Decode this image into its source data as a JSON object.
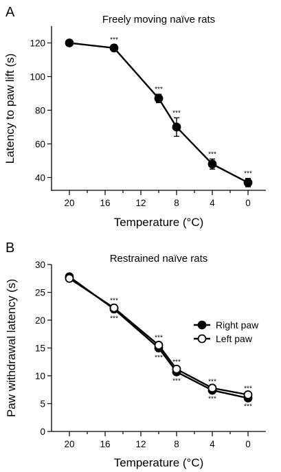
{
  "chart_data": [
    {
      "type": "line",
      "panel_label": "A",
      "title": "Freely moving naïve rats",
      "xlabel": "Temperature (°C)",
      "ylabel": "Latency to paw lift (s)",
      "x_reversed": true,
      "xlim": [
        22,
        -2
      ],
      "ylim": [
        32,
        130
      ],
      "x_ticks": [
        20,
        16,
        12,
        8,
        4,
        0
      ],
      "y_ticks": [
        40,
        60,
        80,
        100,
        120
      ],
      "x_tick_labels": [
        "20",
        "16",
        "12",
        "8",
        "4",
        "0"
      ],
      "y_tick_labels": [
        "40",
        "60",
        "80",
        "100",
        "120"
      ],
      "grid": false,
      "series": [
        {
          "marker": "filled-circle",
          "color": "#000000",
          "x": [
            20,
            15,
            10,
            8,
            4,
            0
          ],
          "y": [
            120,
            117,
            87,
            70,
            48,
            37
          ],
          "error": [
            0,
            2,
            2.5,
            5.5,
            3,
            2.5
          ],
          "annotations": [
            "",
            "***",
            "***",
            "***",
            "***",
            "***"
          ]
        }
      ]
    },
    {
      "type": "line",
      "panel_label": "B",
      "title": "Restrained naïve rats",
      "xlabel": "Temperature (°C)",
      "ylabel": "Paw withdrawal latency (s)",
      "x_reversed": true,
      "xlim": [
        22,
        -2
      ],
      "ylim": [
        0,
        30
      ],
      "x_ticks": [
        20,
        16,
        12,
        8,
        4,
        0
      ],
      "y_ticks": [
        0,
        5,
        10,
        15,
        20,
        25,
        30
      ],
      "x_tick_labels": [
        "20",
        "16",
        "12",
        "8",
        "4",
        "0"
      ],
      "y_tick_labels": [
        "0",
        "5",
        "10",
        "15",
        "20",
        "25",
        "30"
      ],
      "grid": false,
      "legend_position": "right",
      "series": [
        {
          "name": "Right paw",
          "marker": "filled-circle",
          "color": "#000000",
          "x": [
            20,
            15,
            10,
            8,
            4,
            0
          ],
          "y": [
            27.8,
            22,
            15,
            10.7,
            7.4,
            6
          ],
          "error": [
            0.5,
            0.6,
            0.6,
            0.5,
            0.4,
            0.4
          ],
          "annotations": [
            "",
            "***",
            "***",
            "***",
            "***",
            "***"
          ]
        },
        {
          "name": "Left paw",
          "marker": "open-circle",
          "color": "#000000",
          "x": [
            20,
            15,
            10,
            8,
            4,
            0
          ],
          "y": [
            27.5,
            22.2,
            15.5,
            11.2,
            7.8,
            6.6
          ],
          "error": [
            0.5,
            0.6,
            0.6,
            0.5,
            0.4,
            0.4
          ],
          "annotations": [
            "",
            "***",
            "***",
            "***",
            "***",
            "***"
          ]
        }
      ]
    }
  ]
}
